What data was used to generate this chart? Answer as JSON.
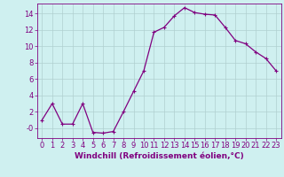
{
  "x": [
    0,
    1,
    2,
    3,
    4,
    5,
    6,
    7,
    8,
    9,
    10,
    11,
    12,
    13,
    14,
    15,
    16,
    17,
    18,
    19,
    20,
    21,
    22,
    23
  ],
  "y": [
    1,
    3,
    0.5,
    0.5,
    3,
    -0.5,
    -0.6,
    -0.4,
    2,
    4.5,
    7,
    11.7,
    12.3,
    13.7,
    14.7,
    14.1,
    13.9,
    13.8,
    12.3,
    10.7,
    10.3,
    9.3,
    8.5,
    7
  ],
  "line_color": "#800080",
  "marker": "+",
  "marker_size": 3,
  "marker_lw": 0.8,
  "line_width": 0.9,
  "bg_color": "#cff0f0",
  "grid_color": "#b0d0d0",
  "xlabel": "Windchill (Refroidissement éolien,°C)",
  "xlabel_fontsize": 6.5,
  "tick_fontsize": 6,
  "ylim": [
    -1.2,
    15.2
  ],
  "xlim": [
    -0.5,
    23.5
  ],
  "yticks": [
    0,
    2,
    4,
    6,
    8,
    10,
    12,
    14
  ],
  "ytick_labels": [
    "-0",
    "2",
    "4",
    "6",
    "8",
    "10",
    "12",
    "14"
  ]
}
